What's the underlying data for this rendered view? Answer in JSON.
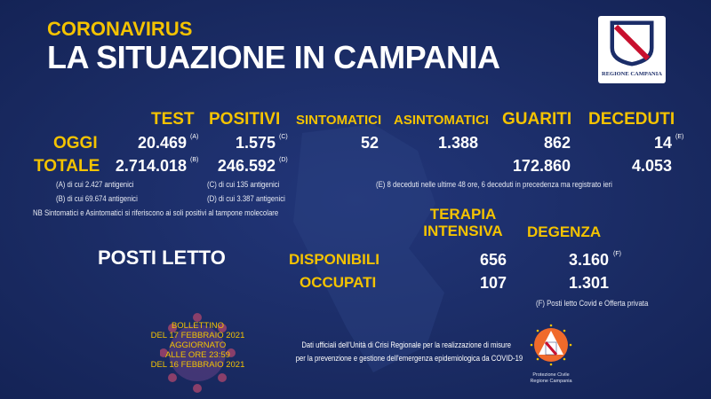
{
  "header": {
    "kicker": "CORONAVIRUS",
    "title": "LA SITUAZIONE IN CAMPANIA",
    "logo_text": "REGIONE CAMPANIA"
  },
  "columns": {
    "test": "TEST",
    "positivi": "POSITIVI",
    "sintomatici": "SINTOMATICI",
    "asintomatici": "ASINTOMATICI",
    "guariti": "GUARITI",
    "deceduti": "DECEDUTI"
  },
  "oggi": {
    "label": "OGGI",
    "test": "20.469",
    "test_note": "(A)",
    "positivi": "1.575",
    "positivi_note": "(C)",
    "sintomatici": "52",
    "asintomatici": "1.388",
    "guariti": "862",
    "deceduti": "14",
    "deceduti_note": "(E)"
  },
  "totale": {
    "label": "TOTALE",
    "test": "2.714.018",
    "test_note": "(B)",
    "positivi": "246.592",
    "positivi_note": "(D)",
    "guariti": "172.860",
    "deceduti": "4.053"
  },
  "notes": {
    "a": "(A) di cui 2.427 antigenici",
    "b": "(B) di cui 69.674 antigenici",
    "c": "(C) di cui 135 antigenici",
    "d": "(D) di cui 3.387 antigenici",
    "e": "(E) 8 deceduti nelle ultime 48 ore, 6 deceduti in precedenza ma registrato ieri",
    "nb": "NB Sintomatici e Asintomatici si riferiscono ai soli positivi al tampone molecolare",
    "f": "(F) Posti letto Covid e Offerta privata"
  },
  "posti_letto": {
    "title": "POSTI LETTO",
    "col_ti_1": "TERAPIA",
    "col_ti_2": "INTENSIVA",
    "col_degenza": "DEGENZA",
    "disponibili": {
      "label": "DISPONIBILI",
      "ti": "656",
      "degenza": "3.160",
      "degenza_note": "(F)"
    },
    "occupati": {
      "label": "OCCUPATI",
      "ti": "107",
      "degenza": "1.301"
    }
  },
  "bollettino": [
    "BOLLETTINO",
    "DEL 17 FEBBRAIO 2021",
    "AGGIORNATO",
    "ALLE ORE 23:59",
    "DEL 16 FEBBRAIO 2021"
  ],
  "footer": {
    "line1": "Dati ufficiali dell'Unità di Crisi Regionale per la realizzazione di misure",
    "line2": "per la prevenzione e gestione dell'emergenza epidemiologica da COVID-19",
    "pc_line1": "Protezione Civile",
    "pc_line2": "Regione Campania"
  },
  "colors": {
    "background": "#1b2d68",
    "accent": "#f4c300",
    "text": "#ffffff"
  }
}
